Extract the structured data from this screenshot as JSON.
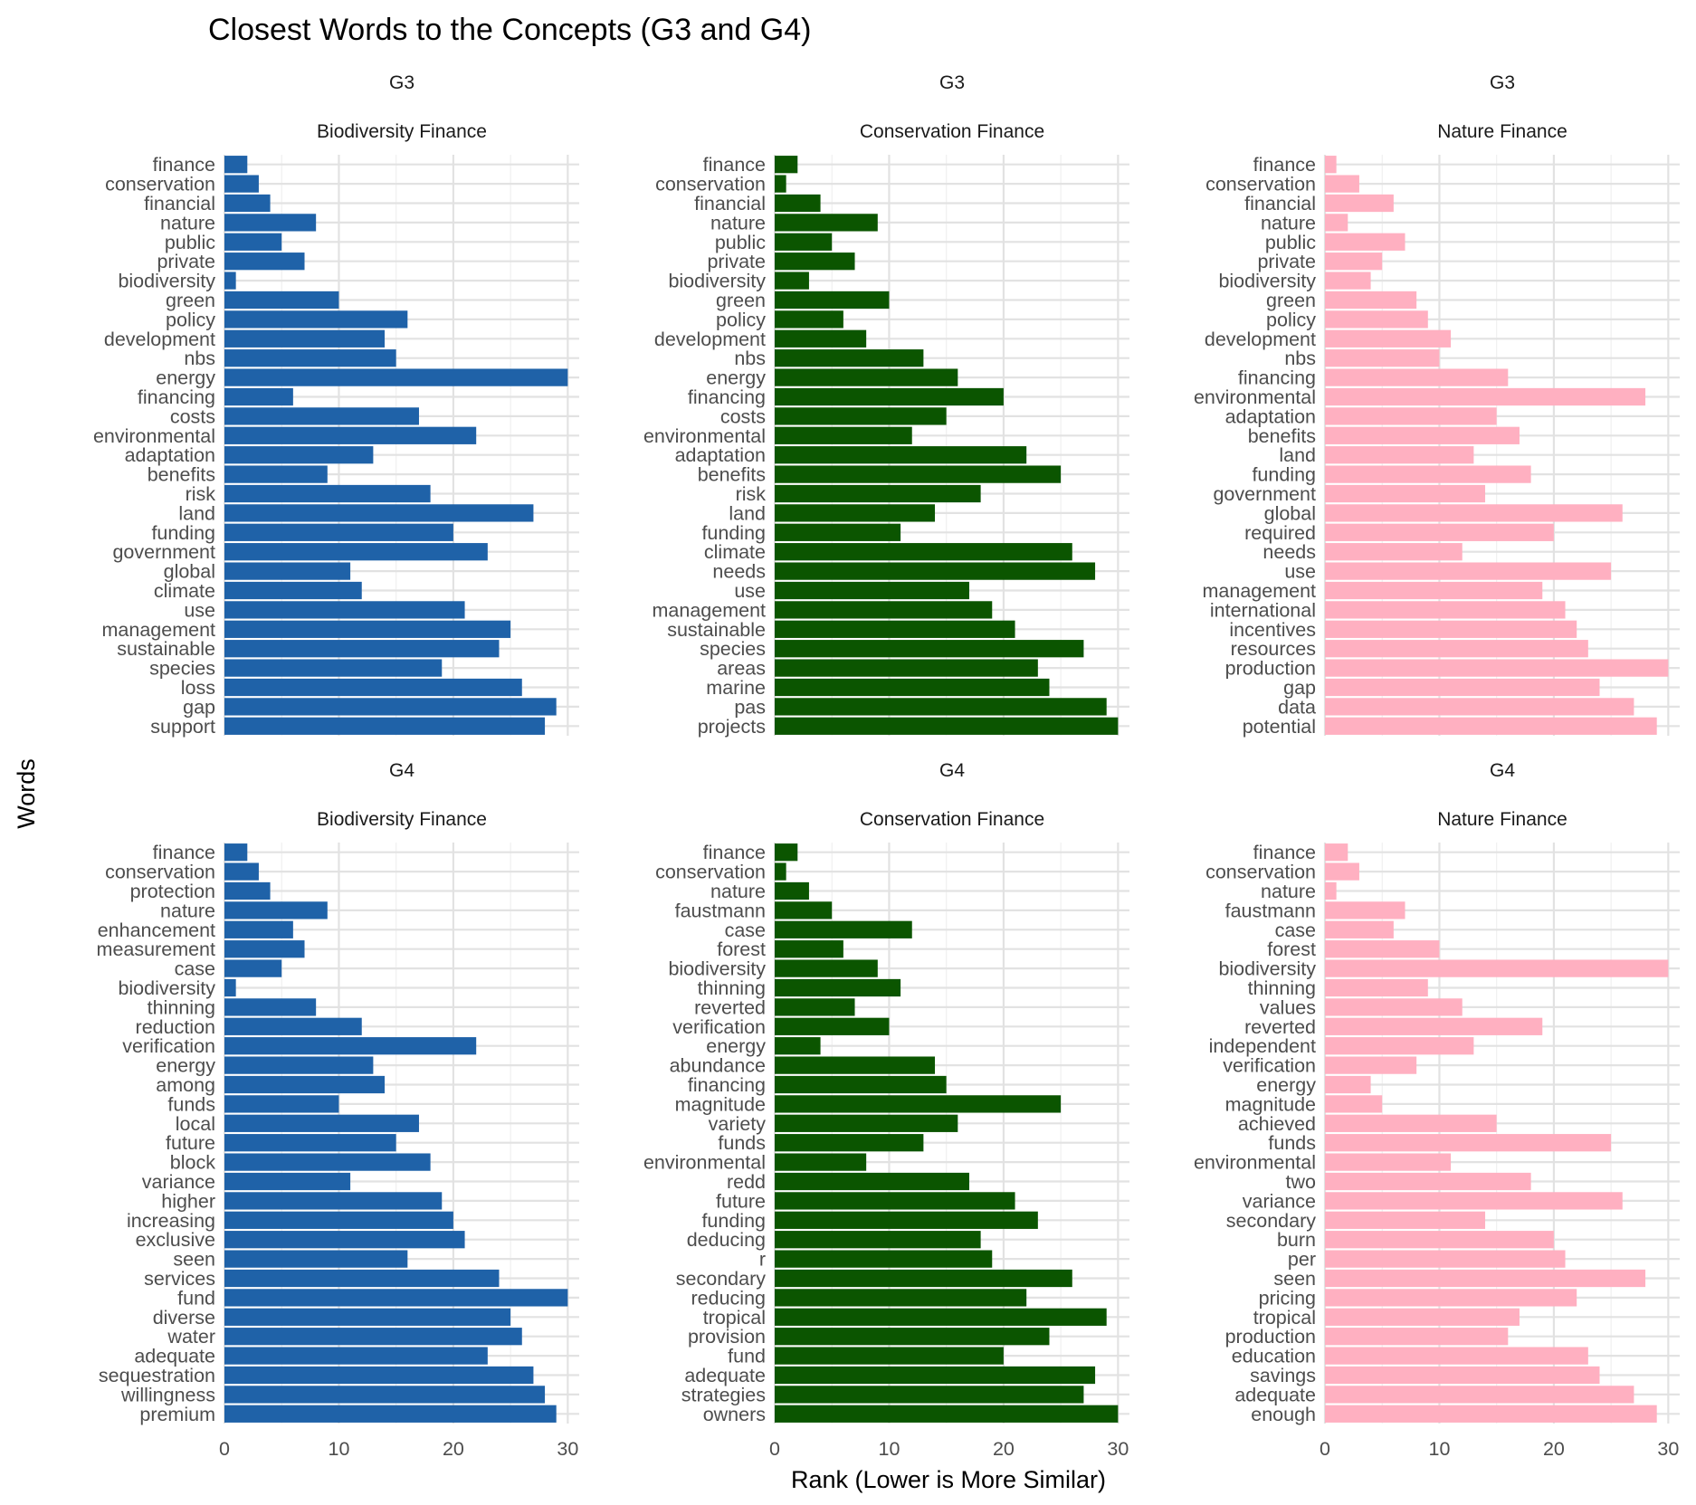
{
  "title": "Closest Words to the Concepts (G3 and G4)",
  "xlabel": "Rank (Lower is More Similar)",
  "ylabel": "Words",
  "x_ticks": [
    "0",
    "10",
    "20",
    "30"
  ],
  "chart_data": {
    "type": "bar",
    "orientation": "horizontal",
    "xlim": [
      0,
      31
    ],
    "x_ticks": [
      0,
      10,
      20,
      30
    ],
    "grid": true,
    "legend": "none",
    "panels": [
      {
        "group": "G3",
        "concept": "Biodiversity Finance",
        "color": "#1f62a8",
        "words": [
          "finance",
          "conservation",
          "financial",
          "nature",
          "public",
          "private",
          "biodiversity",
          "green",
          "policy",
          "development",
          "nbs",
          "energy",
          "financing",
          "costs",
          "environmental",
          "adaptation",
          "benefits",
          "risk",
          "land",
          "funding",
          "government",
          "global",
          "climate",
          "use",
          "management",
          "sustainable",
          "species",
          "loss",
          "gap",
          "support"
        ],
        "values": [
          2,
          3,
          4,
          8,
          5,
          7,
          1,
          10,
          16,
          14,
          15,
          30,
          6,
          17,
          22,
          13,
          9,
          18,
          27,
          20,
          23,
          11,
          12,
          21,
          25,
          24,
          19,
          26,
          29,
          28
        ]
      },
      {
        "group": "G3",
        "concept": "Conservation Finance",
        "color": "#0b5500",
        "words": [
          "finance",
          "conservation",
          "financial",
          "nature",
          "public",
          "private",
          "biodiversity",
          "green",
          "policy",
          "development",
          "nbs",
          "energy",
          "financing",
          "costs",
          "environmental",
          "adaptation",
          "benefits",
          "risk",
          "land",
          "funding",
          "climate",
          "needs",
          "use",
          "management",
          "sustainable",
          "species",
          "areas",
          "marine",
          "pas",
          "projects"
        ],
        "values": [
          2,
          1,
          4,
          9,
          5,
          7,
          3,
          10,
          6,
          8,
          13,
          16,
          20,
          15,
          12,
          22,
          25,
          18,
          14,
          11,
          26,
          28,
          17,
          19,
          21,
          27,
          23,
          24,
          29,
          30
        ]
      },
      {
        "group": "G3",
        "concept": "Nature Finance",
        "color": "#ffb0c1",
        "words": [
          "finance",
          "conservation",
          "financial",
          "nature",
          "public",
          "private",
          "biodiversity",
          "green",
          "policy",
          "development",
          "nbs",
          "financing",
          "environmental",
          "adaptation",
          "benefits",
          "land",
          "funding",
          "government",
          "global",
          "required",
          "needs",
          "use",
          "management",
          "international",
          "incentives",
          "resources",
          "production",
          "gap",
          "data",
          "potential"
        ],
        "values": [
          1,
          3,
          6,
          2,
          7,
          5,
          4,
          8,
          9,
          11,
          10,
          16,
          28,
          15,
          17,
          13,
          18,
          14,
          26,
          20,
          12,
          25,
          19,
          21,
          22,
          23,
          30,
          24,
          27,
          29
        ]
      },
      {
        "group": "G4",
        "concept": "Biodiversity Finance",
        "color": "#1f62a8",
        "words": [
          "finance",
          "conservation",
          "protection",
          "nature",
          "enhancement",
          "measurement",
          "case",
          "biodiversity",
          "thinning",
          "reduction",
          "verification",
          "energy",
          "among",
          "funds",
          "local",
          "future",
          "block",
          "variance",
          "higher",
          "increasing",
          "exclusive",
          "seen",
          "services",
          "fund",
          "diverse",
          "water",
          "adequate",
          "sequestration",
          "willingness",
          "premium"
        ],
        "values": [
          2,
          3,
          4,
          9,
          6,
          7,
          5,
          1,
          8,
          12,
          22,
          13,
          14,
          10,
          17,
          15,
          18,
          11,
          19,
          20,
          21,
          16,
          24,
          30,
          25,
          26,
          23,
          27,
          28,
          29
        ]
      },
      {
        "group": "G4",
        "concept": "Conservation Finance",
        "color": "#0b5500",
        "words": [
          "finance",
          "conservation",
          "nature",
          "faustmann",
          "case",
          "forest",
          "biodiversity",
          "thinning",
          "reverted",
          "verification",
          "energy",
          "abundance",
          "financing",
          "magnitude",
          "variety",
          "funds",
          "environmental",
          "redd",
          "future",
          "funding",
          "deducing",
          "r",
          "secondary",
          "reducing",
          "tropical",
          "provision",
          "fund",
          "adequate",
          "strategies",
          "owners"
        ],
        "values": [
          2,
          1,
          3,
          5,
          12,
          6,
          9,
          11,
          7,
          10,
          4,
          14,
          15,
          25,
          16,
          13,
          8,
          17,
          21,
          23,
          18,
          19,
          26,
          22,
          29,
          24,
          20,
          28,
          27,
          30
        ]
      },
      {
        "group": "G4",
        "concept": "Nature Finance",
        "color": "#ffb0c1",
        "words": [
          "finance",
          "conservation",
          "nature",
          "faustmann",
          "case",
          "forest",
          "biodiversity",
          "thinning",
          "values",
          "reverted",
          "independent",
          "verification",
          "energy",
          "magnitude",
          "achieved",
          "funds",
          "environmental",
          "two",
          "variance",
          "secondary",
          "burn",
          "per",
          "seen",
          "pricing",
          "tropical",
          "production",
          "education",
          "savings",
          "adequate",
          "enough"
        ],
        "values": [
          2,
          3,
          1,
          7,
          6,
          10,
          30,
          9,
          12,
          19,
          13,
          8,
          4,
          5,
          15,
          25,
          11,
          18,
          26,
          14,
          20,
          21,
          28,
          22,
          17,
          16,
          23,
          24,
          27,
          29
        ]
      }
    ]
  }
}
